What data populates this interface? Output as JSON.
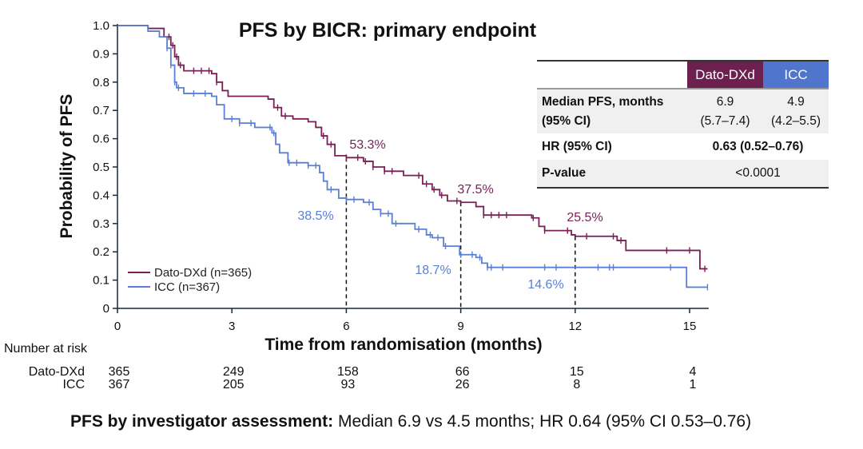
{
  "chart_data": {
    "type": "line",
    "subtype": "kaplan-meier",
    "title": "PFS by BICR: primary endpoint",
    "xlabel": "Time from randomisation (months)",
    "ylabel": "Probability of PFS",
    "xlim": [
      0,
      15.5
    ],
    "ylim": [
      0,
      1.0
    ],
    "xticks": [
      "0",
      "3",
      "6",
      "9",
      "12",
      "15"
    ],
    "yticks": [
      "0",
      "0.1",
      "0.2",
      "0.3",
      "0.4",
      "0.5",
      "0.6",
      "0.7",
      "0.8",
      "0.9",
      "1.0"
    ],
    "legend_placement": "bottom-left",
    "series": [
      {
        "name": "Dato-DXd (n=365)",
        "color": "#7a1f55",
        "points": [
          [
            0,
            1.0
          ],
          [
            0.8,
            0.99
          ],
          [
            1.22,
            0.96
          ],
          [
            1.4,
            0.93
          ],
          [
            1.5,
            0.89
          ],
          [
            1.6,
            0.86
          ],
          [
            1.74,
            0.84
          ],
          [
            2.47,
            0.83
          ],
          [
            2.6,
            0.8
          ],
          [
            2.75,
            0.77
          ],
          [
            2.9,
            0.75
          ],
          [
            3.95,
            0.74
          ],
          [
            4.1,
            0.71
          ],
          [
            4.3,
            0.68
          ],
          [
            4.6,
            0.67
          ],
          [
            5.0,
            0.66
          ],
          [
            5.2,
            0.64
          ],
          [
            5.35,
            0.61
          ],
          [
            5.5,
            0.58
          ],
          [
            5.7,
            0.54
          ],
          [
            6.0,
            0.533
          ],
          [
            6.45,
            0.52
          ],
          [
            6.7,
            0.5
          ],
          [
            7.0,
            0.485
          ],
          [
            7.5,
            0.47
          ],
          [
            8.0,
            0.44
          ],
          [
            8.25,
            0.42
          ],
          [
            8.45,
            0.4
          ],
          [
            8.65,
            0.38
          ],
          [
            9.0,
            0.375
          ],
          [
            9.4,
            0.36
          ],
          [
            9.6,
            0.33
          ],
          [
            10.86,
            0.32
          ],
          [
            11.05,
            0.29
          ],
          [
            11.2,
            0.275
          ],
          [
            11.9,
            0.26
          ],
          [
            12.0,
            0.255
          ],
          [
            13.1,
            0.24
          ],
          [
            13.33,
            0.205
          ],
          [
            15.27,
            0.14
          ],
          [
            15.47,
            0.14
          ]
        ],
        "censored": [
          1.35,
          1.45,
          1.55,
          1.65,
          2.0,
          2.2,
          2.4,
          2.6,
          4.2,
          4.4,
          5.4,
          5.6,
          6.0,
          6.3,
          6.5,
          6.7,
          7.0,
          7.2,
          7.9,
          8.1,
          8.3,
          8.5,
          8.9,
          9.6,
          9.8,
          10.0,
          10.2,
          10.9,
          11.2,
          11.8,
          12.3,
          13.0,
          13.2,
          14.4,
          15.0,
          15.4
        ],
        "annotations": [
          {
            "x": 6,
            "y": 0.533,
            "label": "53.3%"
          },
          {
            "x": 9,
            "y": 0.375,
            "label": "37.5%"
          },
          {
            "x": 12,
            "y": 0.255,
            "label": "25.5%"
          }
        ]
      },
      {
        "name": "ICC (n=367)",
        "color": "#5b7fd4",
        "points": [
          [
            0,
            1.0
          ],
          [
            0.8,
            0.98
          ],
          [
            1.1,
            0.96
          ],
          [
            1.3,
            0.92
          ],
          [
            1.4,
            0.86
          ],
          [
            1.5,
            0.8
          ],
          [
            1.55,
            0.78
          ],
          [
            1.74,
            0.76
          ],
          [
            2.47,
            0.75
          ],
          [
            2.6,
            0.72
          ],
          [
            2.8,
            0.67
          ],
          [
            3.2,
            0.655
          ],
          [
            3.6,
            0.64
          ],
          [
            4.05,
            0.62
          ],
          [
            4.15,
            0.58
          ],
          [
            4.25,
            0.55
          ],
          [
            4.47,
            0.515
          ],
          [
            5.0,
            0.505
          ],
          [
            5.3,
            0.48
          ],
          [
            5.4,
            0.45
          ],
          [
            5.5,
            0.42
          ],
          [
            5.8,
            0.39
          ],
          [
            6.0,
            0.385
          ],
          [
            6.45,
            0.375
          ],
          [
            6.7,
            0.35
          ],
          [
            6.9,
            0.335
          ],
          [
            7.2,
            0.3
          ],
          [
            7.8,
            0.28
          ],
          [
            8.1,
            0.26
          ],
          [
            8.25,
            0.25
          ],
          [
            8.55,
            0.22
          ],
          [
            8.97,
            0.19
          ],
          [
            9.4,
            0.18
          ],
          [
            9.55,
            0.16
          ],
          [
            9.7,
            0.145
          ],
          [
            14.9,
            0.145
          ],
          [
            14.92,
            0.075
          ],
          [
            15.47,
            0.075
          ]
        ],
        "censored": [
          1.3,
          1.4,
          1.5,
          1.6,
          2.0,
          2.3,
          3.0,
          3.2,
          3.5,
          4.0,
          4.1,
          4.5,
          4.7,
          5.0,
          5.2,
          5.6,
          6.0,
          6.2,
          6.6,
          6.9,
          7.1,
          7.3,
          7.9,
          8.2,
          8.4,
          8.6,
          9.0,
          9.3,
          9.5,
          9.7,
          9.8,
          10.1,
          11.2,
          11.5,
          12.6,
          12.9,
          13.0,
          14.5,
          15.47
        ],
        "annotations": [
          {
            "x": 6,
            "y": 0.385,
            "label": "38.5%"
          },
          {
            "x": 9,
            "y": 0.187,
            "label": "18.7%"
          },
          {
            "x": 12,
            "y": 0.146,
            "label": "14.6%"
          }
        ]
      }
    ]
  },
  "summary_table": {
    "headers": [
      "",
      "Dato-DXd",
      "ICC"
    ],
    "header_colors": {
      "Dato-DXd": "#6d1f4f",
      "ICC": "#4f75cc"
    },
    "median_label_1": "Median PFS, months",
    "median_label_2": "(95% CI)",
    "median_dato": "6.9",
    "median_dato_ci": "(5.7–7.4)",
    "median_icc": "4.9",
    "median_icc_ci": "(4.2–5.5)",
    "hr_label": "HR (95% CI)",
    "hr_value": "0.63 (0.52–0.76)",
    "p_label": "P-value",
    "p_value": "<0.0001"
  },
  "risk_table": {
    "title": "Number at risk",
    "rows": [
      {
        "label": "Dato-DXd",
        "values": [
          "365",
          "249",
          "158",
          "66",
          "15",
          "4"
        ]
      },
      {
        "label": "ICC",
        "values": [
          "367",
          "205",
          "93",
          "26",
          "8",
          "1"
        ]
      }
    ]
  },
  "footer": {
    "bold": "PFS by investigator assessment:",
    "text": " Median 6.9 vs 4.5 months; HR 0.64 (95% CI 0.53–0.76)"
  }
}
